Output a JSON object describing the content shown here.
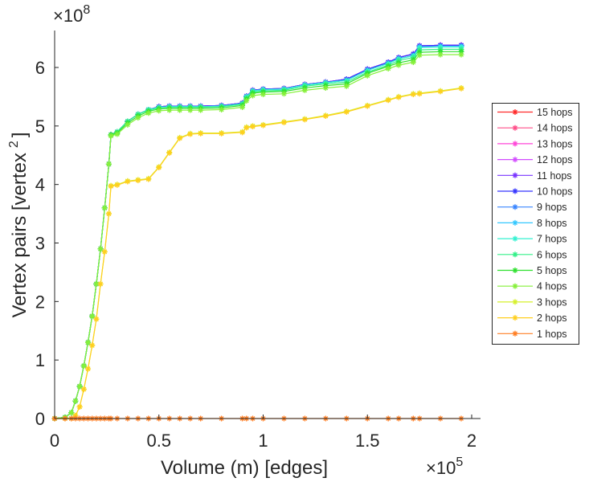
{
  "chart_data": {
    "type": "line",
    "title": "",
    "xlabel": "Volume (m) [edges]",
    "ylabel": "Vertex pairs [vertex",
    "ylabel_sup": "2",
    "ylabel_end": "]",
    "x_multiplier": {
      "base": "×10",
      "exp": "5"
    },
    "y_multiplier": {
      "base": "×10",
      "exp": "8"
    },
    "xlim": [
      0,
      2.04
    ],
    "ylim": [
      0,
      6.6
    ],
    "xticks": [
      0,
      0.5,
      1,
      1.5,
      2
    ],
    "xtick_labels": [
      "0",
      "0.5",
      "1",
      "1.5",
      "2"
    ],
    "yticks": [
      0,
      1,
      2,
      3,
      4,
      5,
      6
    ],
    "ytick_labels": [
      "0",
      "1",
      "2",
      "3",
      "4",
      "5",
      "6"
    ],
    "grid": false,
    "legend_placement": "outside-right",
    "marker": "asterisk",
    "x": [
      0,
      0.05,
      0.08,
      0.1,
      0.12,
      0.14,
      0.16,
      0.18,
      0.2,
      0.22,
      0.24,
      0.26,
      0.27,
      0.3,
      0.35,
      0.4,
      0.45,
      0.5,
      0.55,
      0.6,
      0.65,
      0.7,
      0.8,
      0.9,
      0.92,
      0.95,
      1.0,
      1.1,
      1.2,
      1.3,
      1.4,
      1.5,
      1.6,
      1.65,
      1.72,
      1.75,
      1.85,
      1.95
    ],
    "series": [
      {
        "name": "15 hops",
        "color": "#ff2a2a",
        "values": [
          0,
          0.02,
          0.1,
          0.3,
          0.55,
          0.9,
          1.3,
          1.75,
          2.3,
          2.9,
          3.6,
          4.35,
          4.85,
          4.9,
          5.08,
          5.2,
          5.28,
          5.33,
          5.34,
          5.34,
          5.34,
          5.34,
          5.35,
          5.39,
          5.51,
          5.61,
          5.63,
          5.64,
          5.71,
          5.75,
          5.8,
          5.97,
          6.09,
          6.17,
          6.23,
          6.37,
          6.38,
          6.38
        ]
      },
      {
        "name": "14 hops",
        "color": "#ff4f8a",
        "values": [
          0,
          0.02,
          0.1,
          0.3,
          0.55,
          0.9,
          1.3,
          1.75,
          2.3,
          2.9,
          3.6,
          4.35,
          4.85,
          4.9,
          5.08,
          5.2,
          5.28,
          5.33,
          5.34,
          5.34,
          5.34,
          5.34,
          5.35,
          5.39,
          5.51,
          5.61,
          5.63,
          5.64,
          5.71,
          5.75,
          5.8,
          5.97,
          6.09,
          6.17,
          6.23,
          6.37,
          6.38,
          6.38
        ]
      },
      {
        "name": "13 hops",
        "color": "#ff45d8",
        "values": [
          0,
          0.02,
          0.1,
          0.3,
          0.55,
          0.9,
          1.3,
          1.75,
          2.3,
          2.9,
          3.6,
          4.35,
          4.85,
          4.9,
          5.08,
          5.2,
          5.28,
          5.33,
          5.34,
          5.34,
          5.34,
          5.34,
          5.35,
          5.39,
          5.51,
          5.61,
          5.63,
          5.64,
          5.71,
          5.75,
          5.8,
          5.97,
          6.09,
          6.17,
          6.23,
          6.37,
          6.38,
          6.38
        ]
      },
      {
        "name": "12 hops",
        "color": "#d24cff",
        "values": [
          0,
          0.02,
          0.1,
          0.3,
          0.55,
          0.9,
          1.3,
          1.75,
          2.3,
          2.9,
          3.6,
          4.35,
          4.85,
          4.9,
          5.08,
          5.2,
          5.28,
          5.33,
          5.34,
          5.34,
          5.34,
          5.34,
          5.35,
          5.39,
          5.51,
          5.61,
          5.63,
          5.64,
          5.71,
          5.75,
          5.8,
          5.97,
          6.09,
          6.17,
          6.23,
          6.37,
          6.38,
          6.38
        ]
      },
      {
        "name": "11 hops",
        "color": "#7a34ff",
        "values": [
          0,
          0.02,
          0.1,
          0.3,
          0.55,
          0.9,
          1.3,
          1.75,
          2.3,
          2.9,
          3.6,
          4.35,
          4.85,
          4.9,
          5.08,
          5.2,
          5.28,
          5.33,
          5.34,
          5.34,
          5.34,
          5.34,
          5.35,
          5.39,
          5.51,
          5.61,
          5.63,
          5.64,
          5.71,
          5.75,
          5.8,
          5.97,
          6.09,
          6.17,
          6.23,
          6.37,
          6.38,
          6.38
        ]
      },
      {
        "name": "10 hops",
        "color": "#3535ff",
        "values": [
          0,
          0.02,
          0.1,
          0.3,
          0.55,
          0.9,
          1.3,
          1.75,
          2.3,
          2.9,
          3.6,
          4.35,
          4.85,
          4.9,
          5.08,
          5.2,
          5.28,
          5.33,
          5.34,
          5.34,
          5.34,
          5.34,
          5.35,
          5.39,
          5.51,
          5.61,
          5.63,
          5.64,
          5.71,
          5.75,
          5.8,
          5.97,
          6.09,
          6.17,
          6.23,
          6.37,
          6.38,
          6.38
        ]
      },
      {
        "name": "9 hops",
        "color": "#3a86ff",
        "values": [
          0,
          0.02,
          0.1,
          0.3,
          0.55,
          0.9,
          1.3,
          1.75,
          2.3,
          2.9,
          3.6,
          4.35,
          4.85,
          4.9,
          5.08,
          5.2,
          5.28,
          5.32,
          5.33,
          5.33,
          5.33,
          5.33,
          5.34,
          5.38,
          5.5,
          5.6,
          5.62,
          5.63,
          5.7,
          5.74,
          5.78,
          5.95,
          6.07,
          6.15,
          6.2,
          6.35,
          6.36,
          6.36
        ]
      },
      {
        "name": "8 hops",
        "color": "#35c8ff",
        "values": [
          0,
          0.02,
          0.1,
          0.3,
          0.55,
          0.9,
          1.3,
          1.75,
          2.3,
          2.9,
          3.6,
          4.35,
          4.85,
          4.9,
          5.08,
          5.2,
          5.28,
          5.32,
          5.33,
          5.33,
          5.33,
          5.33,
          5.34,
          5.38,
          5.5,
          5.6,
          5.62,
          5.63,
          5.7,
          5.74,
          5.78,
          5.95,
          6.07,
          6.15,
          6.2,
          6.35,
          6.36,
          6.36
        ]
      },
      {
        "name": "7 hops",
        "color": "#33f2d2",
        "values": [
          0,
          0.02,
          0.1,
          0.3,
          0.55,
          0.9,
          1.3,
          1.75,
          2.3,
          2.9,
          3.6,
          4.35,
          4.85,
          4.9,
          5.08,
          5.2,
          5.28,
          5.32,
          5.33,
          5.33,
          5.33,
          5.33,
          5.34,
          5.38,
          5.5,
          5.6,
          5.62,
          5.63,
          5.7,
          5.74,
          5.78,
          5.95,
          6.07,
          6.15,
          6.2,
          6.34,
          6.35,
          6.35
        ]
      },
      {
        "name": "6 hops",
        "color": "#33f088",
        "values": [
          0,
          0.02,
          0.1,
          0.3,
          0.55,
          0.9,
          1.3,
          1.75,
          2.3,
          2.9,
          3.6,
          4.35,
          4.85,
          4.9,
          5.08,
          5.2,
          5.27,
          5.31,
          5.32,
          5.32,
          5.32,
          5.32,
          5.33,
          5.37,
          5.48,
          5.58,
          5.6,
          5.61,
          5.68,
          5.72,
          5.75,
          5.92,
          6.04,
          6.12,
          6.17,
          6.3,
          6.31,
          6.31
        ]
      },
      {
        "name": "5 hops",
        "color": "#2fe02f",
        "values": [
          0,
          0.02,
          0.1,
          0.3,
          0.55,
          0.9,
          1.3,
          1.75,
          2.3,
          2.9,
          3.6,
          4.35,
          4.85,
          4.88,
          5.05,
          5.17,
          5.25,
          5.29,
          5.3,
          5.3,
          5.3,
          5.3,
          5.31,
          5.35,
          5.46,
          5.56,
          5.58,
          5.59,
          5.65,
          5.69,
          5.72,
          5.9,
          6.02,
          6.08,
          6.13,
          6.26,
          6.27,
          6.27
        ]
      },
      {
        "name": "4 hops",
        "color": "#86f03a",
        "values": [
          0,
          0.02,
          0.1,
          0.3,
          0.55,
          0.9,
          1.3,
          1.75,
          2.3,
          2.9,
          3.6,
          4.35,
          4.83,
          4.86,
          5.02,
          5.14,
          5.22,
          5.26,
          5.27,
          5.27,
          5.27,
          5.27,
          5.28,
          5.32,
          5.43,
          5.52,
          5.54,
          5.55,
          5.61,
          5.65,
          5.68,
          5.86,
          5.98,
          6.04,
          6.09,
          6.21,
          6.22,
          6.22
        ]
      },
      {
        "name": "3 hops",
        "color": "#d6f02a",
        "values": [
          0,
          0,
          0,
          0.05,
          0.2,
          0.5,
          0.85,
          1.25,
          1.7,
          2.3,
          2.85,
          3.5,
          3.98,
          4.0,
          4.06,
          4.08,
          4.1,
          4.3,
          4.55,
          4.8,
          4.87,
          4.88,
          4.88,
          4.9,
          4.98,
          5.0,
          5.02,
          5.07,
          5.12,
          5.18,
          5.25,
          5.35,
          5.45,
          5.5,
          5.55,
          5.56,
          5.6,
          5.65
        ]
      },
      {
        "name": "2 hops",
        "color": "#ffcf1f",
        "values": [
          0,
          0,
          0,
          0.05,
          0.2,
          0.5,
          0.85,
          1.25,
          1.7,
          2.3,
          2.85,
          3.5,
          3.97,
          3.99,
          4.05,
          4.07,
          4.09,
          4.29,
          4.54,
          4.79,
          4.86,
          4.87,
          4.87,
          4.89,
          4.97,
          4.99,
          5.01,
          5.06,
          5.11,
          5.17,
          5.24,
          5.34,
          5.44,
          5.49,
          5.54,
          5.55,
          5.59,
          5.64
        ]
      },
      {
        "name": "1 hops",
        "color": "#ff7f24",
        "values": [
          0,
          0,
          0,
          0,
          0,
          0,
          0,
          0,
          0,
          0,
          0,
          0,
          0,
          0,
          0,
          0,
          0,
          0,
          0,
          0,
          0,
          0,
          0,
          0,
          0,
          0,
          0,
          0,
          0,
          0,
          0,
          0,
          0,
          0,
          0,
          0,
          0,
          0
        ]
      }
    ]
  }
}
